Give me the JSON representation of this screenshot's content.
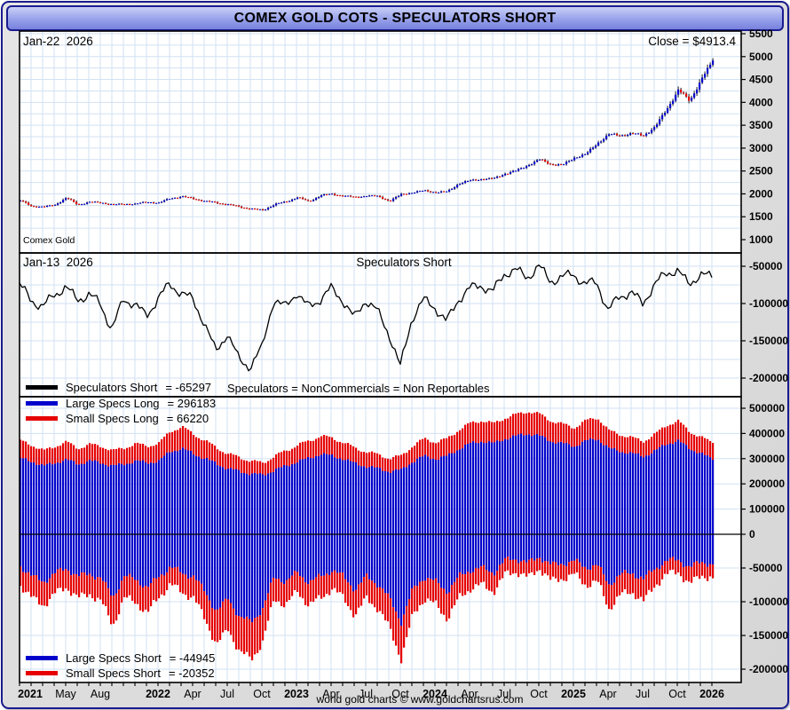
{
  "window_title": "COMEX GOLD COTS - SPECULATORS SHORT",
  "footer": "world gold charts © www.goldchartsrus.com",
  "colors": {
    "accent_navy": "#1b1b8f",
    "titlebar_top": "#c9cff7",
    "titlebar_bottom": "#7781dd",
    "panel_bg": "#ffffff",
    "margin_gray": "#dcdcdc",
    "grid_blue": "#d2e1f3",
    "up_blue": "#0000cc",
    "down_red": "#e60000",
    "line_black": "#000000"
  },
  "top_panel": {
    "date_label": "Jan-22  2026",
    "close_label": "Close = $4913.4",
    "instrument_label": "Comex Gold",
    "yticks": [
      5500,
      5000,
      4500,
      4000,
      3500,
      3000,
      2500,
      2000,
      1500,
      1000
    ]
  },
  "mid_panel": {
    "date_label": "Jan-13  2026",
    "title": "Speculators Short",
    "note": "Speculators = NonCommercials = Non Reportables",
    "legend": {
      "label": "Speculators Short",
      "value": "= -65297"
    },
    "yticks": [
      -50000,
      -100000,
      -150000,
      -200000
    ]
  },
  "bottom_panel": {
    "yticks": [
      500000,
      400000,
      300000,
      200000,
      100000,
      0,
      -50000,
      -100000,
      -150000,
      -200000
    ],
    "legend_top": [
      {
        "label": "Large Specs Long",
        "value": "= 296183",
        "color": "#0000cc"
      },
      {
        "label": "Small Specs Long",
        "value": "= 66220",
        "color": "#e60000"
      }
    ],
    "legend_bottom": [
      {
        "label": "Large Specs Short",
        "value": "= -44945",
        "color": "#0000cc"
      },
      {
        "label": "Small Specs Short",
        "value": "= -20352",
        "color": "#e60000"
      }
    ]
  },
  "xaxis": {
    "labels": [
      {
        "text": "2021",
        "month": 0,
        "bold": true
      },
      {
        "text": "May",
        "month": 4
      },
      {
        "text": "Aug",
        "month": 7
      },
      {
        "text": "2022",
        "month": 12,
        "bold": true
      },
      {
        "text": "Apr",
        "month": 15
      },
      {
        "text": "Jul",
        "month": 18
      },
      {
        "text": "Oct",
        "month": 21
      },
      {
        "text": "2023",
        "month": 24,
        "bold": true
      },
      {
        "text": "Apr",
        "month": 27
      },
      {
        "text": "Jul",
        "month": 30
      },
      {
        "text": "Oct",
        "month": 33
      },
      {
        "text": "2024",
        "month": 36,
        "bold": true
      },
      {
        "text": "Apr",
        "month": 39
      },
      {
        "text": "Jul",
        "month": 42
      },
      {
        "text": "Oct",
        "month": 45
      },
      {
        "text": "2025",
        "month": 48,
        "bold": true
      },
      {
        "text": "Apr",
        "month": 51
      },
      {
        "text": "Jul",
        "month": 54
      },
      {
        "text": "Oct",
        "month": 57
      },
      {
        "text": "2026",
        "month": 60,
        "bold": true
      }
    ]
  },
  "chart_data": [
    {
      "type": "candlestick",
      "name": "Comex Gold weekly price",
      "x_start": "2021-01",
      "x_end": "2026-01",
      "x_unit": "month",
      "ylim": [
        1000,
        5500
      ],
      "last_close": 4913.4,
      "monthly_close": [
        1848,
        1734,
        1708,
        1768,
        1905,
        1770,
        1814,
        1814,
        1757,
        1783,
        1775,
        1829,
        1797,
        1909,
        1937,
        1897,
        1837,
        1807,
        1766,
        1716,
        1672,
        1641,
        1769,
        1824,
        1928,
        1827,
        1969,
        1990,
        1962,
        1919,
        1965,
        1940,
        1848,
        1983,
        2036,
        2063,
        2040,
        2044,
        2230,
        2286,
        2327,
        2327,
        2448,
        2503,
        2635,
        2744,
        2651,
        2625,
        2798,
        2858,
        3115,
        3289,
        3289,
        3303,
        3290,
        3448,
        3859,
        4250,
        4050,
        4480,
        4913.4
      ]
    },
    {
      "type": "line",
      "name": "Speculators Short",
      "scale": 1000,
      "ylim": [
        -225000,
        -31000
      ],
      "last_value": -65297,
      "monthly_values": [
        -75,
        -95,
        -105,
        -88,
        -78,
        -95,
        -88,
        -100,
        -135,
        -95,
        -100,
        -118,
        -92,
        -75,
        -85,
        -95,
        -125,
        -165,
        -140,
        -175,
        -185,
        -160,
        -95,
        -105,
        -85,
        -105,
        -95,
        -80,
        -95,
        -120,
        -95,
        -110,
        -140,
        -185,
        -120,
        -95,
        -105,
        -125,
        -95,
        -80,
        -75,
        -85,
        -60,
        -55,
        -65,
        -50,
        -70,
        -65,
        -60,
        -75,
        -70,
        -110,
        -90,
        -85,
        -100,
        -75,
        -60,
        -55,
        -75,
        -60,
        -65.297
      ]
    },
    {
      "type": "bar",
      "name": "Speculator positions stacked (weekly)",
      "scale": 1000,
      "ylim": [
        -217000,
        545000
      ],
      "series": [
        {
          "name": "Large Specs Long",
          "color": "#0000cc",
          "last_value": 296183,
          "monthly_values": [
            300,
            290,
            270,
            285,
            295,
            280,
            290,
            285,
            270,
            280,
            290,
            285,
            290,
            330,
            340,
            320,
            300,
            280,
            260,
            250,
            240,
            235,
            255,
            270,
            290,
            300,
            320,
            310,
            300,
            280,
            270,
            260,
            250,
            255,
            290,
            310,
            300,
            310,
            340,
            360,
            370,
            360,
            380,
            390,
            400,
            390,
            370,
            360,
            350,
            370,
            380,
            340,
            330,
            320,
            310,
            330,
            360,
            370,
            340,
            320,
            296.183
          ]
        },
        {
          "name": "Small Specs Long",
          "color": "#e60000",
          "last_value": 66220,
          "monthly_values": [
            70,
            65,
            60,
            65,
            70,
            62,
            65,
            66,
            60,
            64,
            68,
            66,
            70,
            80,
            85,
            78,
            70,
            64,
            58,
            55,
            50,
            48,
            55,
            60,
            65,
            68,
            72,
            70,
            66,
            60,
            58,
            55,
            52,
            55,
            62,
            68,
            66,
            68,
            76,
            80,
            82,
            78,
            82,
            85,
            88,
            86,
            80,
            76,
            74,
            80,
            84,
            70,
            66,
            62,
            60,
            66,
            74,
            78,
            68,
            64,
            66.22
          ]
        },
        {
          "name": "Large Specs Short",
          "color": "#0000cc",
          "last_value": -44945,
          "monthly_values": [
            -47,
            -63,
            -70,
            -58,
            -50,
            -63,
            -58,
            -66,
            -93,
            -63,
            -66,
            -80,
            -62,
            -49,
            -57,
            -63,
            -85,
            -115,
            -95,
            -123,
            -130,
            -110,
            -63,
            -70,
            -57,
            -71,
            -63,
            -53,
            -63,
            -82,
            -63,
            -74,
            -96,
            -130,
            -82,
            -63,
            -71,
            -85,
            -63,
            -53,
            -50,
            -57,
            -39,
            -36,
            -43,
            -33,
            -46,
            -43,
            -40,
            -49,
            -46,
            -74,
            -60,
            -57,
            -67,
            -50,
            -40,
            -37,
            -50,
            -40,
            -44.945
          ]
        },
        {
          "name": "Small Specs Short",
          "color": "#e60000",
          "last_value": -20352,
          "monthly_values": [
            -28,
            -32,
            -35,
            -30,
            -28,
            -32,
            -30,
            -34,
            -42,
            -32,
            -34,
            -38,
            -30,
            -26,
            -28,
            -32,
            -40,
            -50,
            -45,
            -52,
            -55,
            -50,
            -32,
            -35,
            -28,
            -34,
            -32,
            -27,
            -32,
            -38,
            -32,
            -36,
            -44,
            -55,
            -38,
            -32,
            -34,
            -40,
            -32,
            -27,
            -25,
            -28,
            -21,
            -19,
            -22,
            -17,
            -24,
            -22,
            -20,
            -26,
            -24,
            -36,
            -30,
            -28,
            -33,
            -25,
            -20,
            -18,
            -25,
            -20,
            -20.352
          ]
        }
      ]
    }
  ]
}
